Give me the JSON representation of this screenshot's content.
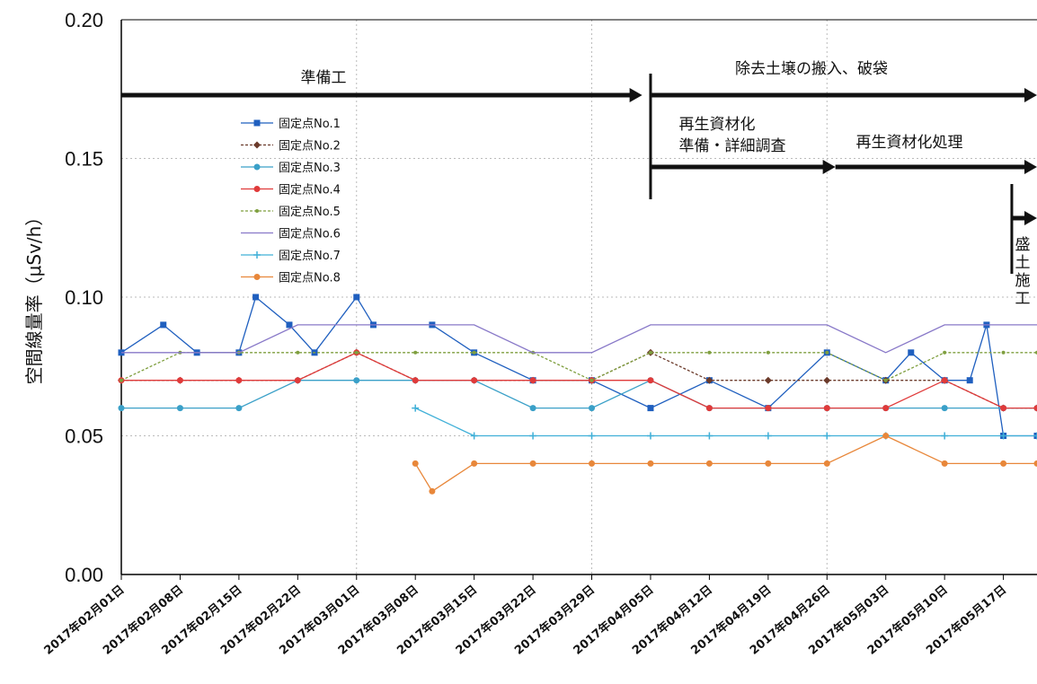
{
  "chart_data": {
    "type": "line",
    "ylabel": "空間線量率（μSv/h）",
    "ylim": [
      0,
      0.2
    ],
    "yticks": [
      "0.00",
      "0.05",
      "0.10",
      "0.15",
      "0.20"
    ],
    "xlim": [
      "2017-02-01",
      "2017-05-21"
    ],
    "xticks": [
      "2017年02月01日",
      "2017年02月08日",
      "2017年02月15日",
      "2017年02月22日",
      "2017年03月01日",
      "2017年03月08日",
      "2017年03月15日",
      "2017年03月22日",
      "2017年03月29日",
      "2017年04月05日",
      "2017年04月12日",
      "2017年04月19日",
      "2017年04月26日",
      "2017年05月03日",
      "2017年05月10日",
      "2017年05月17日"
    ],
    "grid": true,
    "legend_position": "upper-left",
    "series_style": [
      {
        "color": "#1f5fbf",
        "marker": "square"
      },
      {
        "color": "#6b3a2a",
        "marker": "diamond"
      },
      {
        "color": "#3aa0c8",
        "marker": "circle"
      },
      {
        "color": "#e03a3a",
        "marker": "circle"
      },
      {
        "color": "#7f9f3f",
        "marker": "dot"
      },
      {
        "color": "#8878c8",
        "marker": "none"
      },
      {
        "color": "#40b0d8",
        "marker": "plus"
      },
      {
        "color": "#e8873a",
        "marker": "circle"
      }
    ],
    "series": [
      {
        "name": "固定点No.1",
        "x": [
          "2017-02-01",
          "2017-02-06",
          "2017-02-10",
          "2017-02-15",
          "2017-02-17",
          "2017-02-21",
          "2017-02-24",
          "2017-03-01",
          "2017-03-03",
          "2017-03-10",
          "2017-03-15",
          "2017-03-22",
          "2017-03-29",
          "2017-04-05",
          "2017-04-12",
          "2017-04-19",
          "2017-04-26",
          "2017-05-03",
          "2017-05-06",
          "2017-05-10",
          "2017-05-13",
          "2017-05-15",
          "2017-05-17",
          "2017-05-21"
        ],
        "values": [
          0.08,
          0.09,
          0.08,
          0.08,
          0.1,
          0.09,
          0.08,
          0.1,
          0.09,
          0.09,
          0.08,
          0.07,
          0.07,
          0.06,
          0.07,
          0.06,
          0.08,
          0.07,
          0.08,
          0.07,
          0.07,
          0.09,
          0.05,
          0.05
        ]
      },
      {
        "name": "固定点No.2",
        "x": [
          "2017-02-01",
          "2017-02-08",
          "2017-02-15",
          "2017-02-22",
          "2017-03-01",
          "2017-03-08",
          "2017-03-15",
          "2017-03-22",
          "2017-03-29",
          "2017-04-05",
          "2017-04-12",
          "2017-04-19",
          "2017-04-26",
          "2017-05-03",
          "2017-05-10",
          "2017-05-17",
          "2017-05-21"
        ],
        "values": [
          0.07,
          0.07,
          0.07,
          0.07,
          0.08,
          0.07,
          0.07,
          0.07,
          0.07,
          0.08,
          0.07,
          0.07,
          0.07,
          0.07,
          0.07,
          0.06,
          0.06
        ]
      },
      {
        "name": "固定点No.3",
        "x": [
          "2017-02-01",
          "2017-02-08",
          "2017-02-15",
          "2017-02-22",
          "2017-03-01",
          "2017-03-08",
          "2017-03-15",
          "2017-03-22",
          "2017-03-29",
          "2017-04-05",
          "2017-04-12",
          "2017-04-19",
          "2017-04-26",
          "2017-05-03",
          "2017-05-10",
          "2017-05-17",
          "2017-05-21"
        ],
        "values": [
          0.06,
          0.06,
          0.06,
          0.07,
          0.07,
          0.07,
          0.07,
          0.06,
          0.06,
          0.07,
          0.06,
          0.06,
          0.06,
          0.06,
          0.06,
          0.06,
          0.06
        ]
      },
      {
        "name": "固定点No.4",
        "x": [
          "2017-02-01",
          "2017-02-08",
          "2017-02-15",
          "2017-02-22",
          "2017-03-01",
          "2017-03-08",
          "2017-03-15",
          "2017-03-22",
          "2017-03-29",
          "2017-04-05",
          "2017-04-12",
          "2017-04-19",
          "2017-04-26",
          "2017-05-03",
          "2017-05-10",
          "2017-05-17",
          "2017-05-21"
        ],
        "values": [
          0.07,
          0.07,
          0.07,
          0.07,
          0.08,
          0.07,
          0.07,
          0.07,
          0.07,
          0.07,
          0.06,
          0.06,
          0.06,
          0.06,
          0.07,
          0.06,
          0.06
        ]
      },
      {
        "name": "固定点No.5",
        "x": [
          "2017-02-01",
          "2017-02-08",
          "2017-02-15",
          "2017-02-22",
          "2017-03-01",
          "2017-03-08",
          "2017-03-15",
          "2017-03-22",
          "2017-03-29",
          "2017-04-05",
          "2017-04-12",
          "2017-04-19",
          "2017-04-26",
          "2017-05-03",
          "2017-05-10",
          "2017-05-17",
          "2017-05-21"
        ],
        "values": [
          0.07,
          0.08,
          0.08,
          0.08,
          0.08,
          0.08,
          0.08,
          0.08,
          0.07,
          0.08,
          0.08,
          0.08,
          0.08,
          0.07,
          0.08,
          0.08,
          0.08
        ]
      },
      {
        "name": "固定点No.6",
        "x": [
          "2017-02-01",
          "2017-02-08",
          "2017-02-15",
          "2017-02-22",
          "2017-03-01",
          "2017-03-08",
          "2017-03-15",
          "2017-03-22",
          "2017-03-29",
          "2017-04-05",
          "2017-04-12",
          "2017-04-19",
          "2017-04-26",
          "2017-05-03",
          "2017-05-10",
          "2017-05-17",
          "2017-05-21"
        ],
        "values": [
          0.08,
          0.08,
          0.08,
          0.09,
          0.09,
          0.09,
          0.09,
          0.08,
          0.08,
          0.09,
          0.09,
          0.09,
          0.09,
          0.08,
          0.09,
          0.09,
          0.09
        ]
      },
      {
        "name": "固定点No.7",
        "x": [
          "2017-03-08",
          "2017-03-15",
          "2017-03-22",
          "2017-03-29",
          "2017-04-05",
          "2017-04-12",
          "2017-04-19",
          "2017-04-26",
          "2017-05-03",
          "2017-05-10",
          "2017-05-17",
          "2017-05-21"
        ],
        "values": [
          0.06,
          0.05,
          0.05,
          0.05,
          0.05,
          0.05,
          0.05,
          0.05,
          0.05,
          0.05,
          0.05,
          0.05
        ]
      },
      {
        "name": "固定点No.8",
        "x": [
          "2017-03-08",
          "2017-03-10",
          "2017-03-15",
          "2017-03-22",
          "2017-03-29",
          "2017-04-05",
          "2017-04-12",
          "2017-04-19",
          "2017-04-26",
          "2017-05-03",
          "2017-05-10",
          "2017-05-17",
          "2017-05-21"
        ],
        "values": [
          0.04,
          0.03,
          0.04,
          0.04,
          0.04,
          0.04,
          0.04,
          0.04,
          0.04,
          0.05,
          0.04,
          0.04,
          0.04
        ]
      }
    ],
    "phases": [
      {
        "label": "準備工",
        "start": "2017-02-01",
        "end": "2017-04-04"
      },
      {
        "label": "除去土壌の搬入、破袋",
        "start": "2017-04-05",
        "end": "2017-05-21"
      },
      {
        "label": "再生資材化",
        "label2": "準備・詳細調査",
        "start": "2017-04-05",
        "end": "2017-04-27"
      },
      {
        "label": "再生資材化処理",
        "start": "2017-04-27",
        "end": "2017-05-21"
      },
      {
        "label": "盛土施工",
        "start": "2017-05-18",
        "end": "2017-05-21"
      }
    ]
  }
}
